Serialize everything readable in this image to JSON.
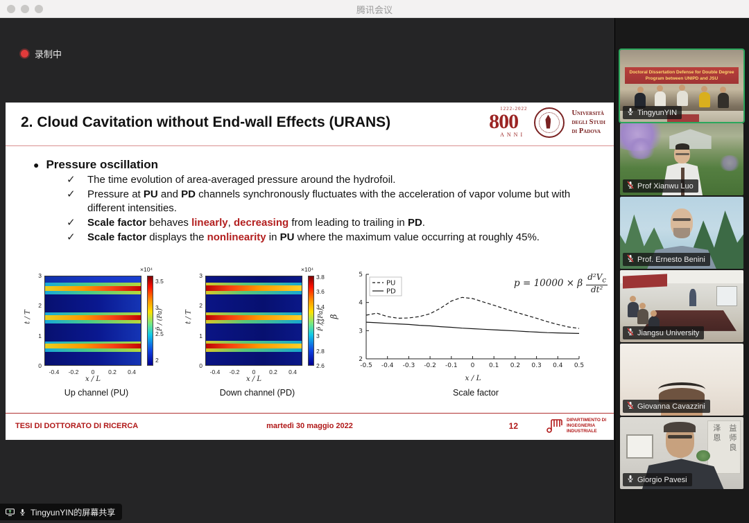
{
  "window": {
    "title": "腾讯会议",
    "recording_label": "录制中",
    "share_banner_label": "TingyunYIN的屏幕共享"
  },
  "slide": {
    "title": "2. Cloud Cavitation without End-wall Effects (URANS)",
    "logo": {
      "anniversary_years": "1222-2022",
      "anniversary_number": "800",
      "anniversary_word": "ANNI",
      "university_lines": [
        "Università",
        "degli Studi",
        "di Padova"
      ]
    },
    "section_dot": "●",
    "section_title": "Pressure oscillation",
    "check_glyph": "✓",
    "bullets": [
      {
        "parts": [
          {
            "t": "The time evolution of area-averaged pressure around the hydrofoil.",
            "s": "n"
          }
        ]
      },
      {
        "parts": [
          {
            "t": "Pressure at ",
            "s": "n"
          },
          {
            "t": "PU",
            "s": "b"
          },
          {
            "t": " and ",
            "s": "n"
          },
          {
            "t": "PD",
            "s": "b"
          },
          {
            "t": " channels synchronously fluctuates with the acceleration of vapor volume but with different intensities.",
            "s": "n"
          }
        ]
      },
      {
        "parts": [
          {
            "t": "Scale factor",
            "s": "b"
          },
          {
            "t": " behaves ",
            "s": "n"
          },
          {
            "t": "linearly",
            "s": "r"
          },
          {
            "t": ", ",
            "s": "n"
          },
          {
            "t": "decreasing",
            "s": "r"
          },
          {
            "t": " from leading to trailing in ",
            "s": "n"
          },
          {
            "t": "PD",
            "s": "b"
          },
          {
            "t": ".",
            "s": "n"
          }
        ]
      },
      {
        "parts": [
          {
            "t": "Scale factor",
            "s": "b"
          },
          {
            "t": " displays the ",
            "s": "n"
          },
          {
            "t": "nonlinearity",
            "s": "r"
          },
          {
            "t": " in ",
            "s": "n"
          },
          {
            "t": "PU",
            "s": "b"
          },
          {
            "t": " where the maximum value occurring at roughly 45%.",
            "s": "n"
          }
        ]
      }
    ],
    "footer": {
      "left": "TESI DI DOTTORATO DI RICERCA",
      "date": "martedì 30 maggio 2022",
      "page": "12",
      "department": "DIPARTIMENTO DI INGEGNERIA INDUSTRIALE"
    }
  },
  "chart_data": [
    {
      "type": "heatmap",
      "title": "Up channel (PU)",
      "xlabel": "x / L",
      "ylabel": "t / T",
      "x_range": [
        -0.5,
        0.5
      ],
      "y_range": [
        0,
        3
      ],
      "x_ticks": [
        -0.4,
        -0.2,
        0,
        0.2,
        0.4
      ],
      "y_ticks": [
        0,
        1,
        2,
        3
      ],
      "colorbar": {
        "exponent": "×10⁴",
        "label": "P̄ / (Pa)",
        "min": 1.9,
        "max": 3.6,
        "ticks": [
          2,
          2.5,
          3,
          3.5
        ]
      },
      "pressure_peaks_at_tT": [
        0.65,
        1.6,
        2.55
      ],
      "pattern": "periodic high-pressure streaks intensify toward trailing edge (right side)"
    },
    {
      "type": "heatmap",
      "title": "Down channel (PD)",
      "xlabel": "x / L",
      "ylabel": "t / T",
      "x_range": [
        -0.5,
        0.5
      ],
      "y_range": [
        0,
        3
      ],
      "x_ticks": [
        -0.4,
        -0.2,
        0,
        0.2,
        0.4
      ],
      "y_ticks": [
        0,
        1,
        2,
        3
      ],
      "colorbar": {
        "exponent": "×10⁴",
        "label": "P̄ / (Pa)",
        "min": 2.6,
        "max": 3.82,
        "ticks": [
          2.6,
          2.8,
          3,
          3.2,
          3.4,
          3.6,
          3.8
        ]
      },
      "pressure_peaks_at_tT": [
        0.65,
        1.55,
        2.5
      ],
      "pattern": "periodic high-pressure streaks strongest at leading edge (left side), decaying toward trailing edge"
    },
    {
      "type": "line",
      "title": "Scale factor",
      "xlabel": "x / L",
      "ylabel": "β",
      "xlim": [
        -0.5,
        0.5
      ],
      "ylim": [
        2,
        5
      ],
      "x_ticks": [
        -0.5,
        -0.4,
        -0.3,
        -0.2,
        -0.1,
        0,
        0.1,
        0.2,
        0.3,
        0.4,
        0.5
      ],
      "y_ticks": [
        2,
        3,
        4,
        5
      ],
      "x": [
        -0.5,
        -0.45,
        -0.4,
        -0.35,
        -0.3,
        -0.25,
        -0.2,
        -0.15,
        -0.1,
        -0.05,
        0,
        0.05,
        0.1,
        0.15,
        0.2,
        0.25,
        0.3,
        0.35,
        0.4,
        0.45,
        0.5
      ],
      "series": [
        {
          "name": "PU",
          "style": "dashed",
          "values": [
            3.55,
            3.62,
            3.5,
            3.44,
            3.45,
            3.5,
            3.6,
            3.8,
            4.05,
            4.18,
            4.14,
            4.02,
            3.9,
            3.78,
            3.66,
            3.55,
            3.44,
            3.32,
            3.22,
            3.13,
            3.08
          ]
        },
        {
          "name": "PD",
          "style": "solid",
          "values": [
            3.3,
            3.28,
            3.26,
            3.24,
            3.22,
            3.19,
            3.17,
            3.14,
            3.12,
            3.09,
            3.07,
            3.05,
            3.03,
            3.01,
            2.99,
            2.97,
            2.95,
            2.93,
            2.92,
            2.91,
            2.9
          ]
        }
      ],
      "equation": {
        "lhs": "p = 10000 × β",
        "num_main": "d²V",
        "num_sub": "c",
        "den": "dt²"
      },
      "legend_position": "top-left",
      "grid": false
    }
  ],
  "participants": [
    {
      "name": "TingyunYIN",
      "muted": false,
      "active_speaker": true,
      "banner": "Doctoral Dissertation Defense for Double Degree Program between UNIPD and JSU"
    },
    {
      "name": "Prof Xianwu Luo",
      "muted": true
    },
    {
      "name": "Prof. Ernesto Benini",
      "muted": true
    },
    {
      "name": "Jiangsu University",
      "muted": true
    },
    {
      "name": "Giovanna Cavazzini",
      "muted": true
    },
    {
      "name": "Giorgio Pavesi",
      "muted": false,
      "calligraphy": [
        "泽恩",
        "益师良"
      ]
    }
  ],
  "colors": {
    "accent_red": "#b32020",
    "footer_red": "#b01818",
    "recording_red": "#e23b3b",
    "active_speaker_green": "#2aa75c"
  }
}
